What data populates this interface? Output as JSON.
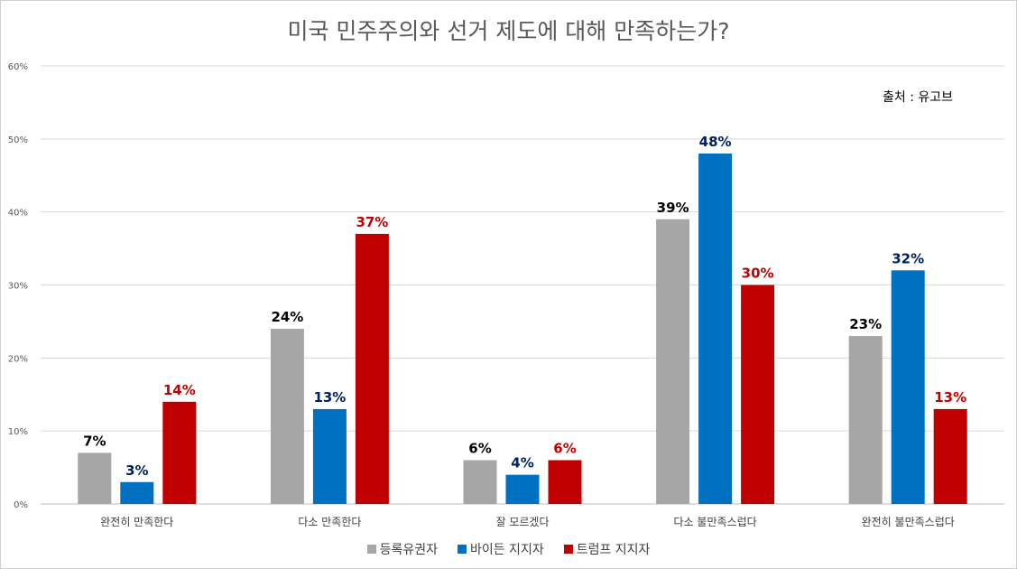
{
  "chart_data": {
    "type": "bar",
    "title": "미국 민주주의와 선거 제도에 대해 만족하는가?",
    "source": "출처 : 유고브",
    "categories": [
      "완전히 만족한다",
      "다소 만족한다",
      "잘 모르겠다",
      "다소 불만족스럽다",
      "완전히 불만족스럽다"
    ],
    "series": [
      {
        "name": "등록유권자",
        "color": "#a6a6a6",
        "label_color": "#000000",
        "values": [
          7,
          24,
          6,
          39,
          23
        ]
      },
      {
        "name": "바이든 지지자",
        "color": "#0070c0",
        "label_color": "#002060",
        "values": [
          3,
          13,
          4,
          48,
          32
        ]
      },
      {
        "name": "트럼프 지지자",
        "color": "#c00000",
        "label_color": "#c00000",
        "values": [
          14,
          37,
          6,
          30,
          13
        ]
      }
    ],
    "y_ticks": [
      "0%",
      "10%",
      "20%",
      "30%",
      "40%",
      "50%",
      "60%"
    ],
    "ylim": [
      0,
      60
    ],
    "value_suffix": "%",
    "grid": true,
    "legend": "bottom"
  }
}
